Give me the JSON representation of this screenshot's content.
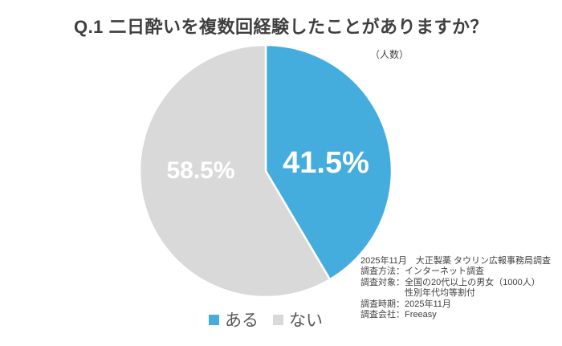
{
  "chart_data": {
    "type": "pie",
    "title": "Q.1 二日酔いを複数回経験したことがありますか？",
    "unit_label": "（人数）",
    "start_angle_deg": 0,
    "direction": "clockwise",
    "legend_position": "bottom",
    "slice_border_color": "#ffffff",
    "background_color": "#ffffff",
    "slices": [
      {
        "label": "ある",
        "value": 41.5,
        "display": "41.5%",
        "color": "#45ACDE"
      },
      {
        "label": "ない",
        "value": 58.5,
        "display": "58.5%",
        "color": "#D9D9D9"
      }
    ]
  },
  "footnote": {
    "lines": [
      "2025年11月　大正製薬 タウリン広報事務局調査",
      "調査方法：インターネット調査",
      "調査対象：全国の20代以上の男女（1000人）",
      "　　　　　性別年代均等割付",
      "調査時期：2025年11月",
      "調査会社：Freeasy"
    ]
  }
}
